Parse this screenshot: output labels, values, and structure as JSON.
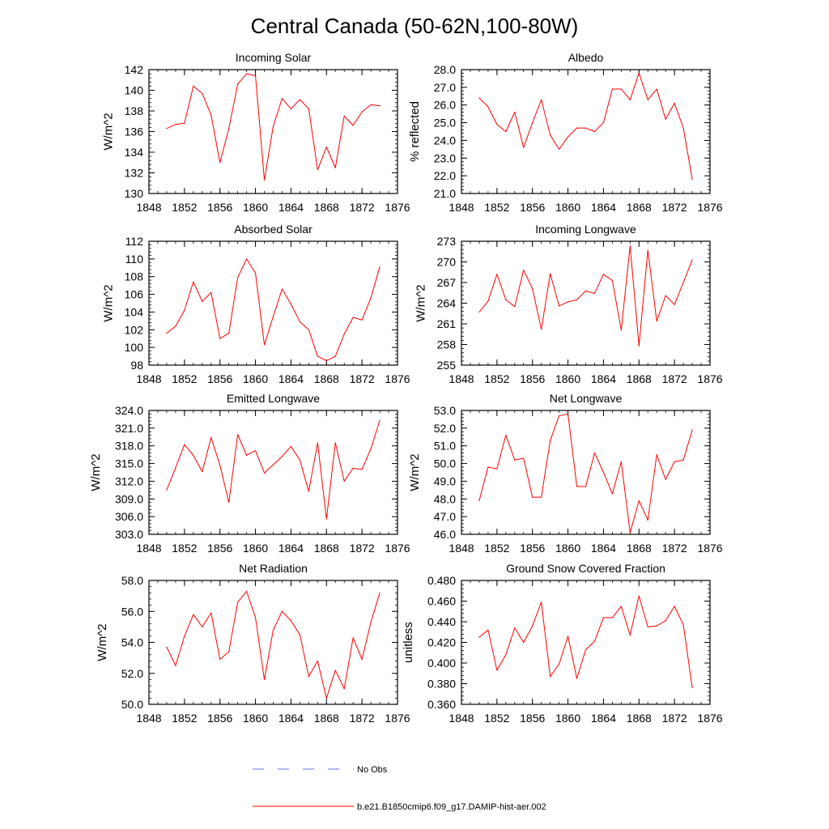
{
  "figure": {
    "title": "Central Canada (50-62N,100-80W)",
    "series_colors": {
      "model": "#ff0000",
      "obs": "#6a6aff"
    }
  },
  "legend": [
    {
      "label": "No Obs",
      "style": "dashed",
      "color": "#6a6aff"
    },
    {
      "label": "b.e21.B1850cmip6.f09_g17.DAMIP-hist-aer.002",
      "style": "solid",
      "color": "#ff0000"
    }
  ],
  "chart_data": [
    {
      "type": "line",
      "title": "Incoming Solar",
      "ylabel": "W/m^2",
      "xlabel": "",
      "xlim": [
        1848,
        1876
      ],
      "xticks": [
        "1848",
        "1852",
        "1856",
        "1860",
        "1864",
        "1868",
        "1872",
        "1876"
      ],
      "ylim": [
        130,
        142
      ],
      "yticks": [
        "130",
        "132",
        "134",
        "136",
        "138",
        "140",
        "142"
      ],
      "x": [
        1850,
        1851,
        1852,
        1853,
        1854,
        1855,
        1856,
        1857,
        1858,
        1859,
        1860,
        1861,
        1862,
        1863,
        1864,
        1865,
        1866,
        1867,
        1868,
        1869,
        1870,
        1871,
        1872,
        1873,
        1874
      ],
      "series": [
        {
          "name": "b.e21.B1850cmip6.f09_g17.DAMIP-hist-aer.002",
          "values": [
            136.3,
            136.7,
            136.8,
            140.4,
            139.7,
            137.6,
            133.0,
            136.3,
            140.6,
            141.6,
            141.4,
            131.3,
            136.5,
            139.2,
            138.2,
            139.1,
            138.2,
            132.3,
            134.5,
            132.5,
            137.5,
            136.6,
            137.9,
            138.6,
            138.5
          ]
        }
      ]
    },
    {
      "type": "line",
      "title": "Albedo",
      "ylabel": "% reflected",
      "xlabel": "",
      "xlim": [
        1848,
        1876
      ],
      "xticks": [
        "1848",
        "1852",
        "1856",
        "1860",
        "1864",
        "1868",
        "1872",
        "1876"
      ],
      "ylim": [
        21,
        28
      ],
      "yticks": [
        "21.0",
        "22.0",
        "23.0",
        "24.0",
        "25.0",
        "26.0",
        "27.0",
        "28.0"
      ],
      "x": [
        1850,
        1851,
        1852,
        1853,
        1854,
        1855,
        1856,
        1857,
        1858,
        1859,
        1860,
        1861,
        1862,
        1863,
        1864,
        1865,
        1866,
        1867,
        1868,
        1869,
        1870,
        1871,
        1872,
        1873,
        1874
      ],
      "series": [
        {
          "name": "b.e21.B1850cmip6.f09_g17.DAMIP-hist-aer.002",
          "values": [
            26.4,
            25.9,
            24.9,
            24.5,
            25.6,
            23.6,
            25.0,
            26.3,
            24.3,
            23.5,
            24.2,
            24.7,
            24.7,
            24.5,
            25.0,
            26.9,
            26.9,
            26.3,
            27.8,
            26.3,
            26.9,
            25.2,
            26.1,
            24.7,
            21.8
          ]
        }
      ]
    },
    {
      "type": "line",
      "title": "Absorbed Solar",
      "ylabel": "W/m^2",
      "xlabel": "",
      "xlim": [
        1848,
        1876
      ],
      "xticks": [
        "1848",
        "1852",
        "1856",
        "1860",
        "1864",
        "1868",
        "1872",
        "1876"
      ],
      "ylim": [
        98,
        112
      ],
      "yticks": [
        "98",
        "100",
        "102",
        "104",
        "106",
        "108",
        "110",
        "112"
      ],
      "x": [
        1850,
        1851,
        1852,
        1853,
        1854,
        1855,
        1856,
        1857,
        1858,
        1859,
        1860,
        1861,
        1862,
        1863,
        1864,
        1865,
        1866,
        1867,
        1868,
        1869,
        1870,
        1871,
        1872,
        1873,
        1874
      ],
      "series": [
        {
          "name": "b.e21.B1850cmip6.f09_g17.DAMIP-hist-aer.002",
          "values": [
            101.6,
            102.4,
            104.2,
            107.4,
            105.2,
            106.2,
            101.0,
            101.6,
            107.9,
            110.0,
            108.4,
            100.3,
            103.5,
            106.6,
            104.9,
            102.9,
            102.0,
            99.0,
            98.5,
            99.0,
            101.5,
            103.4,
            103.1,
            105.6,
            109.1
          ]
        }
      ]
    },
    {
      "type": "line",
      "title": "Incoming Longwave",
      "ylabel": "W/m^2",
      "xlabel": "",
      "xlim": [
        1848,
        1876
      ],
      "xticks": [
        "1848",
        "1852",
        "1856",
        "1860",
        "1864",
        "1868",
        "1872",
        "1876"
      ],
      "ylim": [
        255,
        273
      ],
      "yticks": [
        "255",
        "258",
        "261",
        "264",
        "267",
        "270",
        "273"
      ],
      "x": [
        1850,
        1851,
        1852,
        1853,
        1854,
        1855,
        1856,
        1857,
        1858,
        1859,
        1860,
        1861,
        1862,
        1863,
        1864,
        1865,
        1866,
        1867,
        1868,
        1869,
        1870,
        1871,
        1872,
        1873,
        1874
      ],
      "series": [
        {
          "name": "b.e21.B1850cmip6.f09_g17.DAMIP-hist-aer.002",
          "values": [
            262.7,
            264.3,
            268.2,
            264.5,
            263.5,
            268.8,
            266.1,
            260.2,
            268.3,
            263.6,
            264.2,
            264.5,
            265.8,
            265.4,
            268.2,
            267.3,
            260.1,
            272.3,
            257.8,
            271.7,
            261.4,
            265.1,
            263.8,
            267.0,
            270.3
          ]
        }
      ]
    },
    {
      "type": "line",
      "title": "Emitted Longwave",
      "ylabel": "W/m^2",
      "xlabel": "",
      "xlim": [
        1848,
        1876
      ],
      "xticks": [
        "1848",
        "1852",
        "1856",
        "1860",
        "1864",
        "1868",
        "1872",
        "1876"
      ],
      "ylim": [
        303,
        324
      ],
      "yticks": [
        "303.0",
        "306.0",
        "309.0",
        "312.0",
        "315.0",
        "318.0",
        "321.0",
        "324.0"
      ],
      "x": [
        1850,
        1851,
        1852,
        1853,
        1854,
        1855,
        1856,
        1857,
        1858,
        1859,
        1860,
        1861,
        1862,
        1863,
        1864,
        1865,
        1866,
        1867,
        1868,
        1869,
        1870,
        1871,
        1872,
        1873,
        1874
      ],
      "series": [
        {
          "name": "b.e21.B1850cmip6.f09_g17.DAMIP-hist-aer.002",
          "values": [
            310.5,
            314.3,
            318.2,
            316.4,
            313.6,
            319.4,
            314.7,
            308.4,
            319.9,
            316.4,
            317.2,
            313.4,
            314.8,
            316.2,
            317.9,
            315.6,
            310.3,
            318.5,
            305.6,
            318.5,
            312.0,
            314.2,
            314.0,
            317.5,
            322.3
          ]
        }
      ]
    },
    {
      "type": "line",
      "title": "Net Longwave",
      "ylabel": "W/m^2",
      "xlabel": "",
      "xlim": [
        1848,
        1876
      ],
      "xticks": [
        "1848",
        "1852",
        "1856",
        "1860",
        "1864",
        "1868",
        "1872",
        "1876"
      ],
      "ylim": [
        46,
        53
      ],
      "yticks": [
        "46.0",
        "47.0",
        "48.0",
        "49.0",
        "50.0",
        "51.0",
        "52.0",
        "53.0"
      ],
      "x": [
        1850,
        1851,
        1852,
        1853,
        1854,
        1855,
        1856,
        1857,
        1858,
        1859,
        1860,
        1861,
        1862,
        1863,
        1864,
        1865,
        1866,
        1867,
        1868,
        1869,
        1870,
        1871,
        1872,
        1873,
        1874
      ],
      "series": [
        {
          "name": "b.e21.B1850cmip6.f09_g17.DAMIP-hist-aer.002",
          "values": [
            47.9,
            49.8,
            49.7,
            51.6,
            50.2,
            50.3,
            48.1,
            48.1,
            51.3,
            52.7,
            52.8,
            48.7,
            48.7,
            50.6,
            49.5,
            48.3,
            50.1,
            46.1,
            47.9,
            46.8,
            50.5,
            49.1,
            50.1,
            50.2,
            51.9
          ]
        }
      ]
    },
    {
      "type": "line",
      "title": "Net Radiation",
      "ylabel": "W/m^2",
      "xlabel": "",
      "xlim": [
        1848,
        1876
      ],
      "xticks": [
        "1848",
        "1852",
        "1856",
        "1860",
        "1864",
        "1868",
        "1872",
        "1876"
      ],
      "ylim": [
        50,
        58
      ],
      "yticks": [
        "50.0",
        "52.0",
        "54.0",
        "56.0",
        "58.0"
      ],
      "x": [
        1850,
        1851,
        1852,
        1853,
        1854,
        1855,
        1856,
        1857,
        1858,
        1859,
        1860,
        1861,
        1862,
        1863,
        1864,
        1865,
        1866,
        1867,
        1868,
        1869,
        1870,
        1871,
        1872,
        1873,
        1874
      ],
      "series": [
        {
          "name": "b.e21.B1850cmip6.f09_g17.DAMIP-hist-aer.002",
          "values": [
            53.7,
            52.5,
            54.4,
            55.8,
            55.0,
            55.9,
            52.9,
            53.4,
            56.6,
            57.3,
            55.6,
            51.6,
            54.8,
            56.0,
            55.4,
            54.5,
            51.8,
            52.8,
            50.4,
            52.2,
            51.0,
            54.3,
            52.9,
            55.3,
            57.2
          ]
        }
      ]
    },
    {
      "type": "line",
      "title": "Ground Snow Covered Fraction",
      "ylabel": "unitless",
      "xlabel": "",
      "xlim": [
        1848,
        1876
      ],
      "xticks": [
        "1848",
        "1852",
        "1856",
        "1860",
        "1864",
        "1868",
        "1872",
        "1876"
      ],
      "ylim": [
        0.36,
        0.48
      ],
      "yticks": [
        "0.360",
        "0.380",
        "0.400",
        "0.420",
        "0.440",
        "0.460",
        "0.480"
      ],
      "x": [
        1850,
        1851,
        1852,
        1853,
        1854,
        1855,
        1856,
        1857,
        1858,
        1859,
        1860,
        1861,
        1862,
        1863,
        1864,
        1865,
        1866,
        1867,
        1868,
        1869,
        1870,
        1871,
        1872,
        1873,
        1874
      ],
      "series": [
        {
          "name": "b.e21.B1850cmip6.f09_g17.DAMIP-hist-aer.002",
          "values": [
            0.425,
            0.432,
            0.393,
            0.408,
            0.434,
            0.42,
            0.436,
            0.459,
            0.387,
            0.399,
            0.426,
            0.385,
            0.413,
            0.421,
            0.444,
            0.444,
            0.455,
            0.427,
            0.465,
            0.435,
            0.436,
            0.441,
            0.455,
            0.437,
            0.376
          ]
        }
      ]
    }
  ]
}
